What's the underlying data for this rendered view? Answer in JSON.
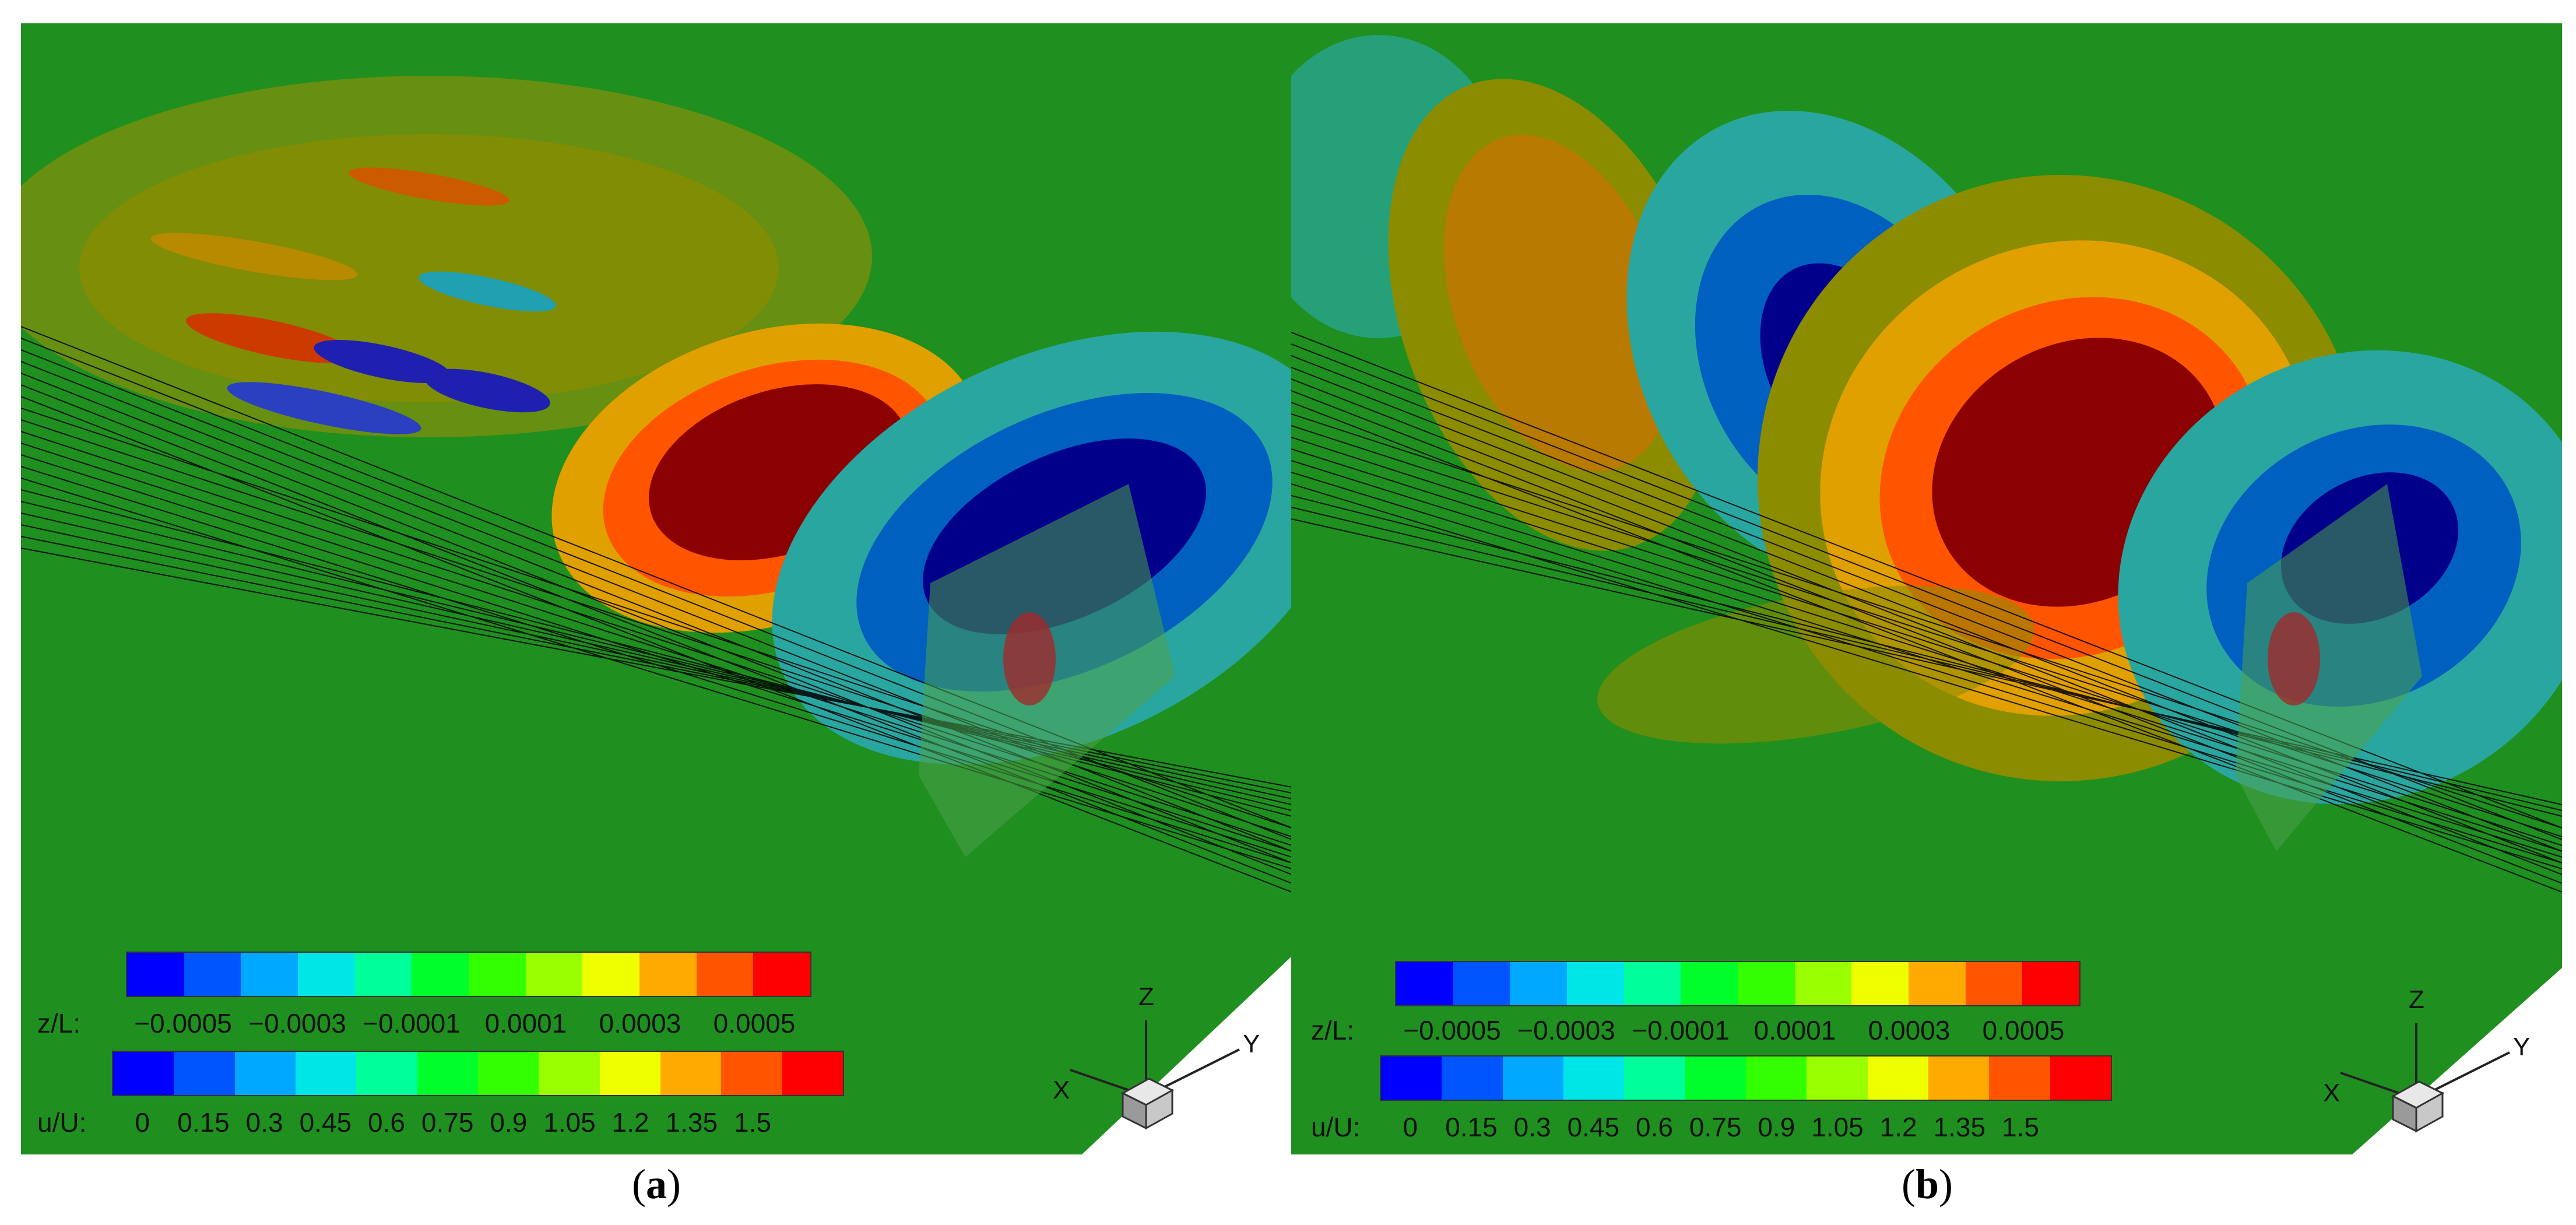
{
  "panels": [
    {
      "id": "a",
      "caption_open": "(",
      "caption_letter": "a",
      "caption_close": ")",
      "colorbar_z": {
        "label": "z/L:",
        "ticks": [
          "−0.0005",
          "−0.0003",
          "−0.0001",
          "0.0001",
          "0.0003",
          "0.0005"
        ],
        "colors": [
          "#0000ff",
          "#0055ff",
          "#00a8ff",
          "#00e6e6",
          "#00ff99",
          "#00ff2a",
          "#33ff00",
          "#99ff00",
          "#eeff00",
          "#ffaa00",
          "#ff5500",
          "#ff0000"
        ]
      },
      "colorbar_u": {
        "label": "u/U:",
        "ticks": [
          "0",
          "0.15",
          "0.3",
          "0.45",
          "0.6",
          "0.75",
          "0.9",
          "1.05",
          "1.2",
          "1.35",
          "1.5"
        ],
        "colors": [
          "#0000ff",
          "#0055ff",
          "#00a8ff",
          "#00e6e6",
          "#00ff99",
          "#00ff2a",
          "#33ff00",
          "#99ff00",
          "#eeff00",
          "#ffaa00",
          "#ff5500",
          "#ff0000"
        ]
      },
      "axes": {
        "x": "X",
        "y": "Y",
        "z": "Z"
      }
    },
    {
      "id": "b",
      "caption_open": "(",
      "caption_letter": "b",
      "caption_close": ")",
      "colorbar_z": {
        "label": "z/L:",
        "ticks": [
          "−0.0005",
          "−0.0003",
          "−0.0001",
          "0.0001",
          "0.0003",
          "0.0005"
        ],
        "colors": [
          "#0000ff",
          "#0055ff",
          "#00a8ff",
          "#00e6e6",
          "#00ff99",
          "#00ff2a",
          "#33ff00",
          "#99ff00",
          "#eeff00",
          "#ffaa00",
          "#ff5500",
          "#ff0000"
        ]
      },
      "colorbar_u": {
        "label": "u/U:",
        "ticks": [
          "0",
          "0.15",
          "0.3",
          "0.45",
          "0.6",
          "0.75",
          "0.9",
          "1.05",
          "1.2",
          "1.35",
          "1.5"
        ],
        "colors": [
          "#0000ff",
          "#0055ff",
          "#00a8ff",
          "#00e6e6",
          "#00ff99",
          "#00ff2a",
          "#33ff00",
          "#99ff00",
          "#eeff00",
          "#ffaa00",
          "#ff5500",
          "#ff0000"
        ]
      },
      "axes": {
        "x": "X",
        "y": "Y",
        "z": "Z"
      }
    }
  ],
  "colors": {
    "background_field": "#1f8f1f",
    "wave_red": "#8b0000",
    "wave_blue": "#00008b",
    "wave_teal": "#2aa6a0",
    "wave_olive": "#8c8c00",
    "white_bg": "#ffffff"
  }
}
